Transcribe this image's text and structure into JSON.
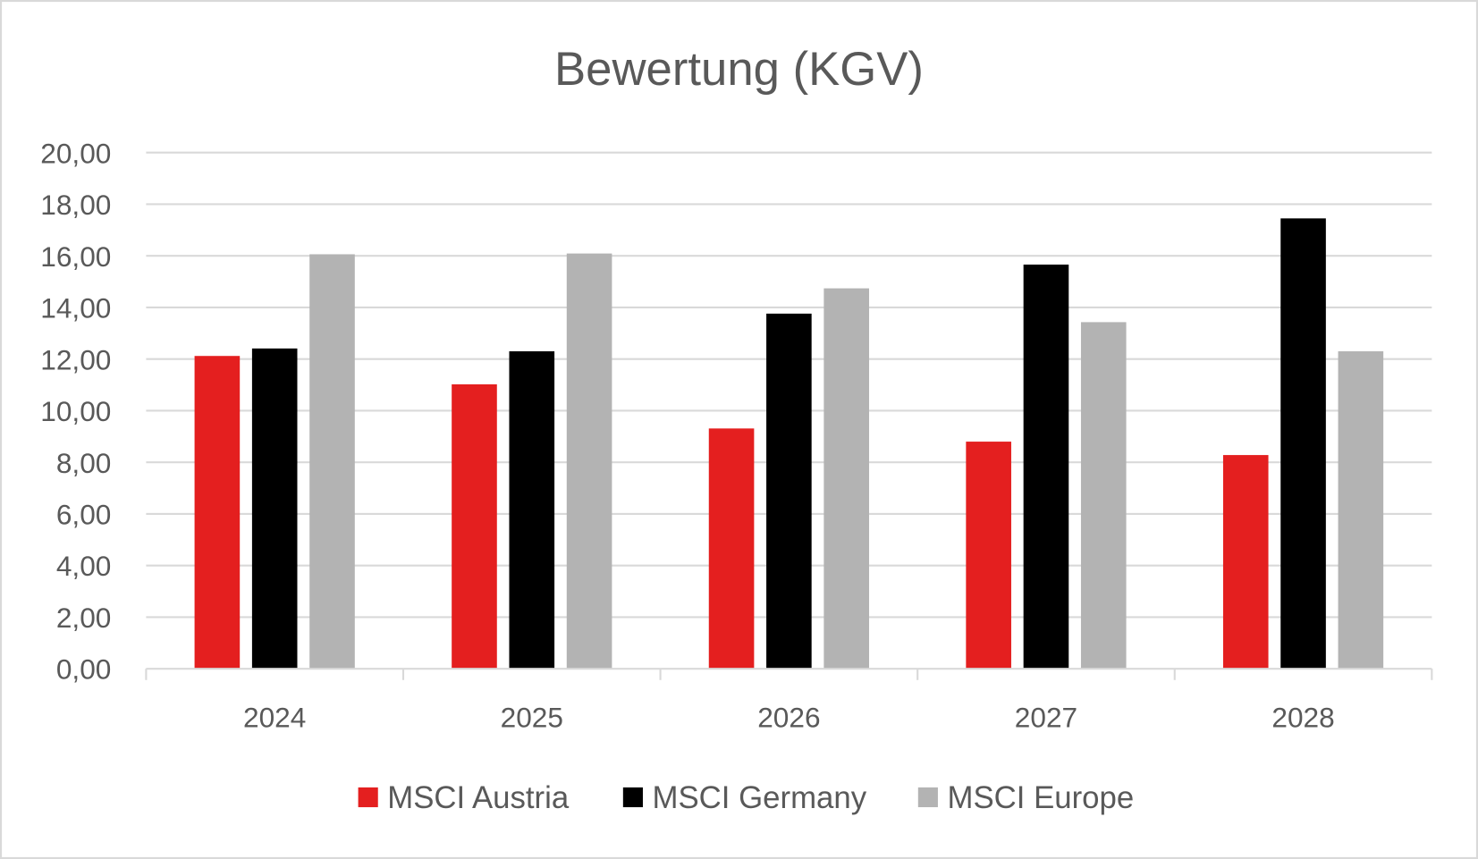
{
  "chart_data": {
    "type": "bar",
    "title": "Bewertung (KGV)",
    "xlabel": "",
    "ylabel": "",
    "categories": [
      "2024",
      "2025",
      "2026",
      "2027",
      "2028"
    ],
    "ylim": [
      0,
      20
    ],
    "yticks": [
      "0,00",
      "2,00",
      "4,00",
      "6,00",
      "8,00",
      "10,00",
      "12,00",
      "14,00",
      "16,00",
      "18,00",
      "20,00"
    ],
    "grid": true,
    "legend_position": "bottom",
    "series": [
      {
        "name": "MSCI Austria",
        "color": "#E41F1F",
        "values": [
          12.12,
          11.02,
          9.31,
          8.8,
          8.28
        ]
      },
      {
        "name": "MSCI Germany",
        "color": "#000000",
        "values": [
          12.41,
          12.3,
          13.76,
          15.66,
          17.45
        ]
      },
      {
        "name": "MSCI Europe",
        "color": "#B3B3B3",
        "values": [
          16.06,
          16.09,
          14.74,
          13.43,
          12.3
        ]
      }
    ]
  }
}
